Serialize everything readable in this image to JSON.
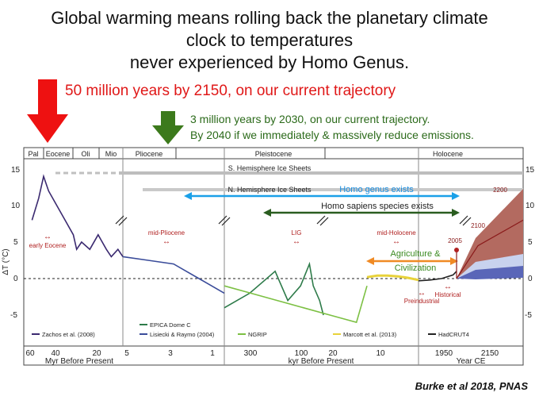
{
  "headline": {
    "line1": "Global warming means rolling back the planetary climate",
    "line2": "clock to temperatures",
    "line3": "never experienced by Homo Genus."
  },
  "red_note": "50 million years by 2150, on our current trajectory",
  "green_note": {
    "line1": "3 million years by 2030, on our current trajectory.",
    "line2": "By 2040 if we immediately & massively reduce emissions."
  },
  "credit": "Burke et al 2018, PNAS",
  "colors": {
    "red_arrow": "#ee1111",
    "green_arrow": "#3c7a1c",
    "blue_arrow": "#1aa0e8",
    "dark_green_arrow": "#2a5d20",
    "orange_arrow": "#f08a24"
  },
  "chart_data": {
    "type": "line",
    "ylabel": "ΔT (°C)",
    "ylim": [
      -7,
      16
    ],
    "y_ticks": [
      "15",
      "10",
      "5",
      "0",
      "-5"
    ],
    "eras": [
      "Pal",
      "Eocene",
      "Oli",
      "Mio",
      "Pliocene",
      "Pleistocene",
      "Holocene"
    ],
    "sections": [
      {
        "name": "Myr Before Present",
        "ticks": [
          "60",
          "40",
          "20",
          "5",
          "3",
          "1"
        ]
      },
      {
        "name": "kyr Before Present",
        "ticks": [
          "300",
          "100",
          "20",
          "10"
        ]
      },
      {
        "name": "Year CE",
        "ticks": [
          "1950",
          "2150"
        ]
      }
    ],
    "annotations": {
      "s_ice": "S. Hemisphere Ice Sheets",
      "n_ice": "N. Hemisphere Ice Sheets",
      "homo_genus": "Homo genus exists",
      "homo_sapiens": "Homo sapiens species exists",
      "agriculture_1": "Agriculture &",
      "agriculture_2": "Civilization",
      "early_eocene": "early Eocene",
      "mid_pliocene": "mid-Pliocene",
      "lig": "LIG",
      "mid_holocene": "mid-Holocene",
      "preindustrial": "Preindustrial",
      "historical": "Historical",
      "y2005": "2005",
      "y2100": "2100",
      "y2200": "2200",
      "arrow": "↔"
    },
    "legend": [
      {
        "name": "Zachos et al. (2008)",
        "color": "#3b2a70"
      },
      {
        "name": "EPICA Dome C",
        "color": "#2e7b4a"
      },
      {
        "name": "Lisiecki & Raymo (2004)",
        "color": "#3a4c9a"
      },
      {
        "name": "NGRIP",
        "color": "#7cc043"
      },
      {
        "name": "Marcott et al. (2013)",
        "color": "#e8d23a"
      },
      {
        "name": "HadCRUT4",
        "color": "#222222"
      }
    ],
    "series": [
      {
        "name": "Zachos et al. (2008)",
        "x": [
          60,
          56,
          53,
          50,
          45,
          40,
          35,
          33,
          30,
          25,
          20,
          15,
          12,
          8,
          5
        ],
        "y": [
          8,
          11,
          14,
          12,
          10,
          8,
          6,
          4,
          5,
          4,
          6,
          4,
          3,
          4,
          3
        ]
      },
      {
        "name": "Lisiecki & Raymo (2004)",
        "x": [
          5,
          4,
          3,
          2.5,
          2,
          1.5,
          1
        ],
        "y": [
          3,
          2.5,
          2,
          1,
          0,
          -1,
          -2
        ]
      },
      {
        "name": "EPICA Dome C",
        "x": [
          800,
          600,
          400,
          300,
          200,
          130,
          100,
          50,
          20
        ],
        "y": [
          -4,
          -2,
          1,
          -3,
          -1,
          2,
          -1,
          -3,
          -5
        ]
      },
      {
        "name": "NGRIP",
        "x": [
          120,
          100,
          80,
          60,
          40,
          20,
          12
        ],
        "y": [
          -1,
          -2,
          -3,
          -4,
          -5,
          -6,
          -1
        ]
      },
      {
        "name": "Marcott et al. (2013)",
        "x": [
          11,
          9,
          7,
          5,
          3,
          1
        ],
        "y": [
          0.2,
          0.4,
          0.4,
          0.3,
          0.1,
          -0.2
        ]
      },
      {
        "name": "HadCRUT4",
        "x": [
          1850,
          1900,
          1950,
          2000,
          2015
        ],
        "y": [
          -0.3,
          -0.2,
          0,
          0.5,
          1
        ]
      }
    ],
    "projections": [
      {
        "name": "2100",
        "y2100": 4.5
      },
      {
        "name": "2200",
        "y2200": 8
      }
    ]
  }
}
